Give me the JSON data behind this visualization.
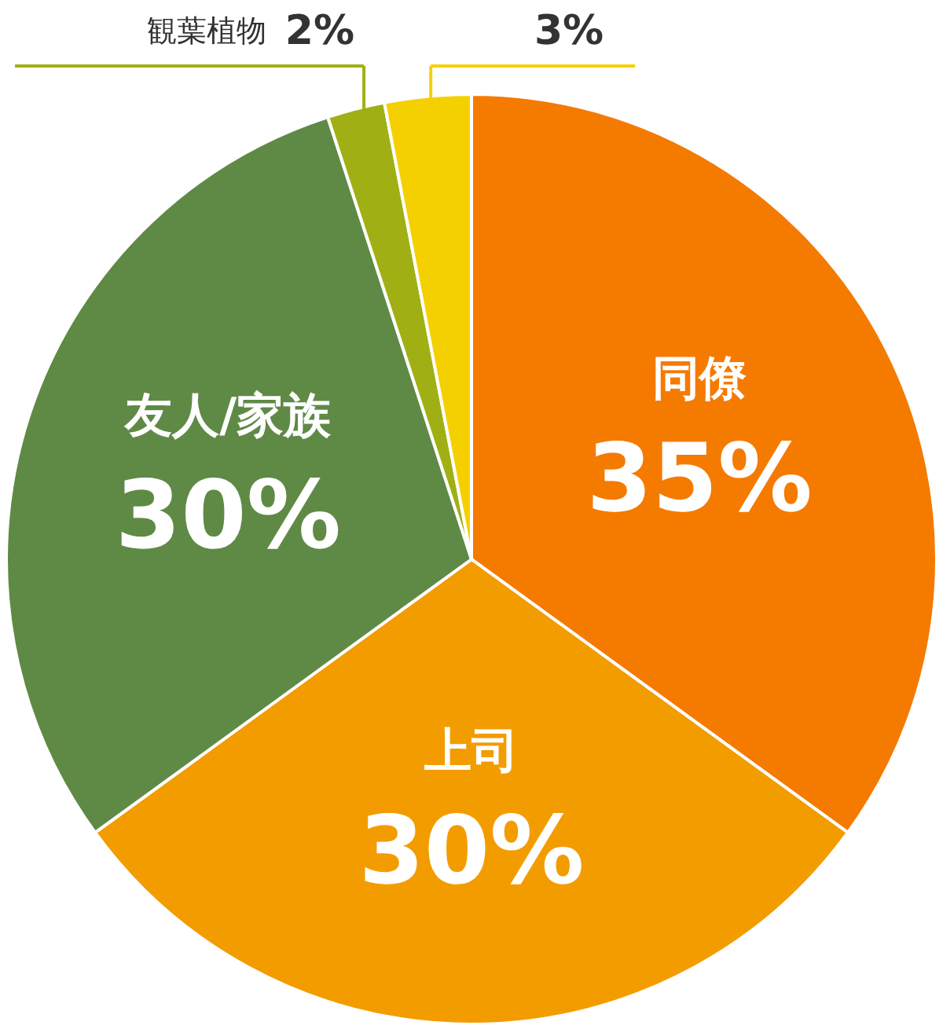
{
  "chart_data": {
    "type": "pie",
    "categories": [
      "同僚",
      "上司",
      "友人/家族",
      "観葉植物",
      null
    ],
    "values": [
      35,
      30,
      30,
      2,
      3
    ],
    "colors": [
      "#f57a00",
      "#f39c00",
      "#5f8a46",
      "#a0b014",
      "#f5d000"
    ],
    "value_labels": [
      "35%",
      "30%",
      "30%",
      "2%",
      "3%"
    ]
  }
}
